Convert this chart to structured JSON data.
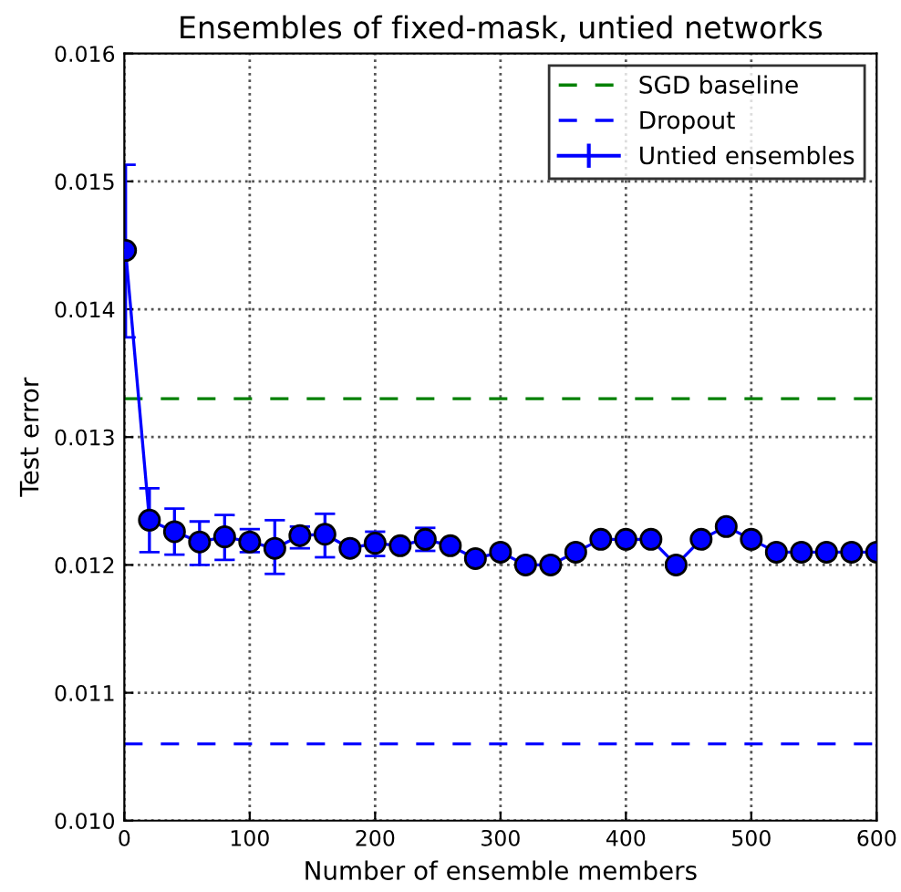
{
  "chart_data": {
    "type": "line",
    "title": "Ensembles of fixed-mask, untied networks",
    "xlabel": "Number of ensemble members",
    "ylabel": "Test error",
    "xlim": [
      0,
      600
    ],
    "xticks": [
      0,
      100,
      200,
      300,
      400,
      500,
      600
    ],
    "ylim": [
      0.01,
      0.016
    ],
    "yticks": [
      {
        "value": 0.01,
        "label": "0.010"
      },
      {
        "value": 0.011,
        "label": "0.011"
      },
      {
        "value": 0.012,
        "label": "0.012"
      },
      {
        "value": 0.013,
        "label": "0.013"
      },
      {
        "value": 0.014,
        "label": "0.014"
      },
      {
        "value": 0.015,
        "label": "0.015"
      },
      {
        "value": 0.016,
        "label": "0.016"
      }
    ],
    "grid": true,
    "legend": "top right",
    "marker": "circle",
    "line_style": "solid",
    "ref_lines": [
      {
        "axis": "y",
        "value": 0.0133,
        "label": "SGD baseline",
        "color": "#008000",
        "line_style": "dashed"
      },
      {
        "axis": "y",
        "value": 0.0106,
        "label": "Dropout",
        "color": "#0000ff",
        "line_style": "dashed"
      }
    ],
    "series": [
      {
        "name": "Untied ensembles",
        "color": "#0000ff",
        "x": [
          1,
          20,
          40,
          60,
          80,
          100,
          120,
          140,
          160,
          180,
          200,
          220,
          240,
          260,
          280,
          300,
          320,
          340,
          360,
          380,
          400,
          420,
          440,
          460,
          480,
          500,
          520,
          540,
          560,
          580,
          600
        ],
        "values": [
          0.01446,
          0.01235,
          0.01226,
          0.01218,
          0.01222,
          0.01218,
          0.01213,
          0.01223,
          0.01224,
          0.01213,
          0.01217,
          0.01215,
          0.0122,
          0.01215,
          0.01205,
          0.0121,
          0.012,
          0.012,
          0.0121,
          0.0122,
          0.0122,
          0.0122,
          0.012,
          0.0122,
          0.0123,
          0.0122,
          0.0121,
          0.0121,
          0.0121,
          0.0121,
          0.0121
        ],
        "errors": [
          [
            0.01378,
            0.01513
          ],
          [
            0.0121,
            0.0126
          ],
          [
            0.01208,
            0.01244
          ],
          [
            0.012,
            0.01234
          ],
          [
            0.01204,
            0.01239
          ],
          [
            0.0121,
            0.01228
          ],
          [
            0.01193,
            0.01235
          ],
          [
            0.01213,
            0.0123
          ],
          [
            0.01206,
            0.0124
          ],
          null,
          [
            0.01207,
            0.01226
          ],
          null,
          [
            0.01211,
            0.01229
          ],
          null,
          null,
          null,
          null,
          null,
          null,
          null,
          null,
          null,
          null,
          null,
          null,
          null,
          null,
          null,
          null,
          null,
          null
        ]
      }
    ]
  }
}
